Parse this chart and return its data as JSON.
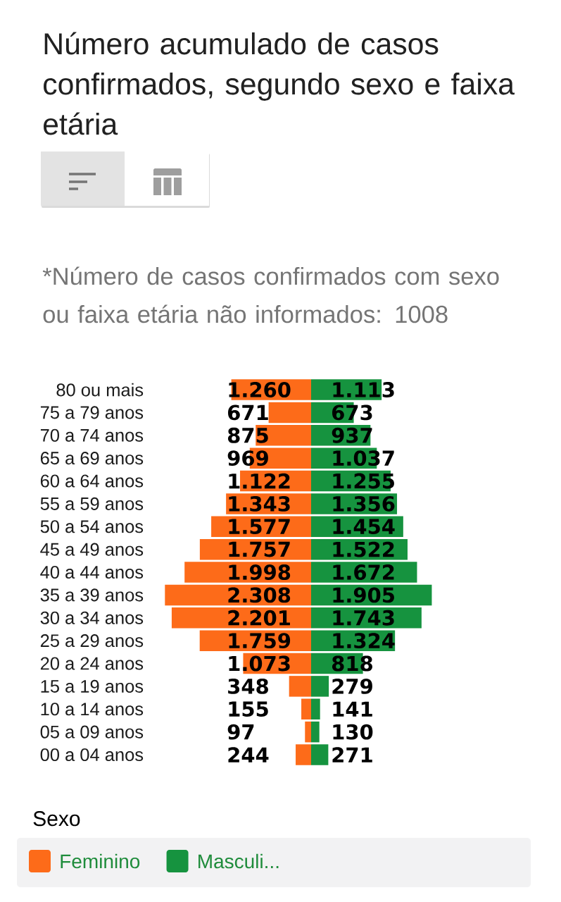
{
  "chart_data": [
    {
      "type": "bar",
      "orientation": "horizontal",
      "title": "Número acumulado de casos confirmados, segundo sexo e faixa etária",
      "annotations": [
        "*Número de casos confirmados com sexo ou faixa etária não informados: 1008"
      ],
      "legend_title": "Sexo",
      "categories": [
        "80 ou mais",
        "75 a 79 anos",
        "70 a 74 anos",
        "65 a 69 anos",
        "60 a 64 anos",
        "55 a 59 anos",
        "50 a 54 anos",
        "45 a 49 anos",
        "40 a 44 anos",
        "35 a 39 anos",
        "30 a 34 anos",
        "25 a 29 anos",
        "20 a 24 anos",
        "15 a 19 anos",
        "10 a 14 anos",
        "05 a 09 anos",
        "00 a 04 anos"
      ],
      "series": [
        {
          "name": "Feminino",
          "color": "#fd6b19",
          "values": [
            1260,
            671,
            875,
            969,
            1122,
            1343,
            1577,
            1757,
            1998,
            2308,
            2201,
            1759,
            1073,
            348,
            155,
            97,
            244
          ],
          "value_labels": [
            "1.260",
            "671",
            "875",
            "969",
            "1.122",
            "1.343",
            "1.577",
            "1.757",
            "1.998",
            "2.308",
            "2.201",
            "1.759",
            "1.073",
            "348",
            "155",
            "97",
            "244"
          ]
        }
      ],
      "xlim": [
        2308,
        0
      ],
      "legend": "bottom",
      "tick_labels": "y"
    },
    {
      "type": "bar",
      "orientation": "horizontal",
      "categories": [
        null,
        null,
        null,
        null,
        null,
        null,
        null,
        null,
        null,
        null,
        null,
        null,
        null,
        null,
        null,
        null,
        null
      ],
      "series": [
        {
          "name": "Masculi...",
          "color": "#16933f",
          "values": [
            1113,
            673,
            937,
            1037,
            1255,
            1356,
            1454,
            1522,
            1672,
            1905,
            1743,
            1324,
            818,
            279,
            141,
            130,
            271
          ],
          "value_labels": [
            "1.113",
            "673",
            "937",
            "1.037",
            "1.255",
            "1.356",
            "1.454",
            "1.522",
            "1.672",
            "1.905",
            "1.743",
            "1.324",
            "818",
            "279",
            "141",
            "130",
            "271"
          ]
        }
      ],
      "legend": "bottom",
      "tick_labels": false
    }
  ]
}
